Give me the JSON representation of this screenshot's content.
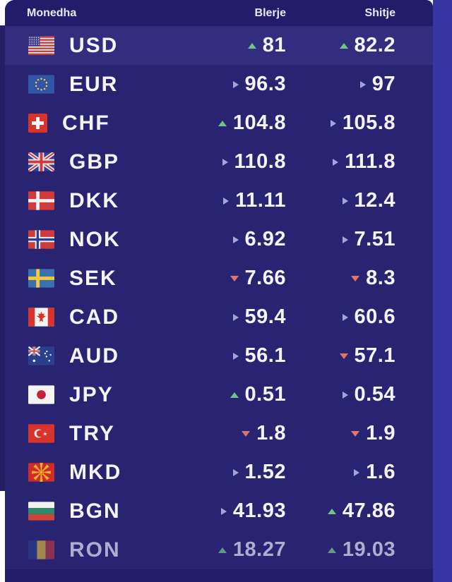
{
  "colors": {
    "header_bg": "#221d6b",
    "card_bg": "#282472",
    "highlight_bg": "#322d7e",
    "up_green": "#72c389",
    "down_red": "#e2756a",
    "neutral_lavender": "#9da7de"
  },
  "table": {
    "columns": {
      "currency": "Monedha",
      "buy": "Blerje",
      "sell": "Shitje"
    },
    "rows": [
      {
        "code": "USD",
        "flag": "us",
        "flag_icon": "usa-flag-icon",
        "buy": "81",
        "buy_trend": "up",
        "sell": "82.2",
        "sell_trend": "up",
        "highlighted": true
      },
      {
        "code": "EUR",
        "flag": "eu",
        "flag_icon": "eu-flag-icon",
        "buy": "96.3",
        "buy_trend": "right",
        "sell": "97",
        "sell_trend": "right"
      },
      {
        "code": "CHF",
        "flag": "ch",
        "flag_icon": "switzerland-flag-icon",
        "buy": "104.8",
        "buy_trend": "up",
        "sell": "105.8",
        "sell_trend": "right"
      },
      {
        "code": "GBP",
        "flag": "gb",
        "flag_icon": "uk-flag-icon",
        "buy": "110.8",
        "buy_trend": "right",
        "sell": "111.8",
        "sell_trend": "right"
      },
      {
        "code": "DKK",
        "flag": "dk",
        "flag_icon": "denmark-flag-icon",
        "buy": "11.11",
        "buy_trend": "right",
        "sell": "12.4",
        "sell_trend": "right"
      },
      {
        "code": "NOK",
        "flag": "no",
        "flag_icon": "norway-flag-icon",
        "buy": "6.92",
        "buy_trend": "right",
        "sell": "7.51",
        "sell_trend": "right"
      },
      {
        "code": "SEK",
        "flag": "se",
        "flag_icon": "sweden-flag-icon",
        "buy": "7.66",
        "buy_trend": "down",
        "sell": "8.3",
        "sell_trend": "down"
      },
      {
        "code": "CAD",
        "flag": "ca",
        "flag_icon": "canada-flag-icon",
        "buy": "59.4",
        "buy_trend": "right",
        "sell": "60.6",
        "sell_trend": "right"
      },
      {
        "code": "AUD",
        "flag": "au",
        "flag_icon": "australia-flag-icon",
        "buy": "56.1",
        "buy_trend": "right",
        "sell": "57.1",
        "sell_trend": "down"
      },
      {
        "code": "JPY",
        "flag": "jp",
        "flag_icon": "japan-flag-icon",
        "buy": "0.51",
        "buy_trend": "up",
        "sell": "0.54",
        "sell_trend": "right"
      },
      {
        "code": "TRY",
        "flag": "tr",
        "flag_icon": "turkey-flag-icon",
        "buy": "1.8",
        "buy_trend": "down",
        "sell": "1.9",
        "sell_trend": "down"
      },
      {
        "code": "MKD",
        "flag": "mk",
        "flag_icon": "macedonia-flag-icon",
        "buy": "1.52",
        "buy_trend": "right",
        "sell": "1.6",
        "sell_trend": "right"
      },
      {
        "code": "BGN",
        "flag": "bg",
        "flag_icon": "bulgaria-flag-icon",
        "buy": "41.93",
        "buy_trend": "right",
        "sell": "47.86",
        "sell_trend": "up"
      },
      {
        "code": "RON",
        "flag": "ro",
        "flag_icon": "romania-flag-icon",
        "buy": "18.27",
        "buy_trend": "up",
        "sell": "19.03",
        "sell_trend": "up",
        "dimmed": true
      }
    ]
  }
}
